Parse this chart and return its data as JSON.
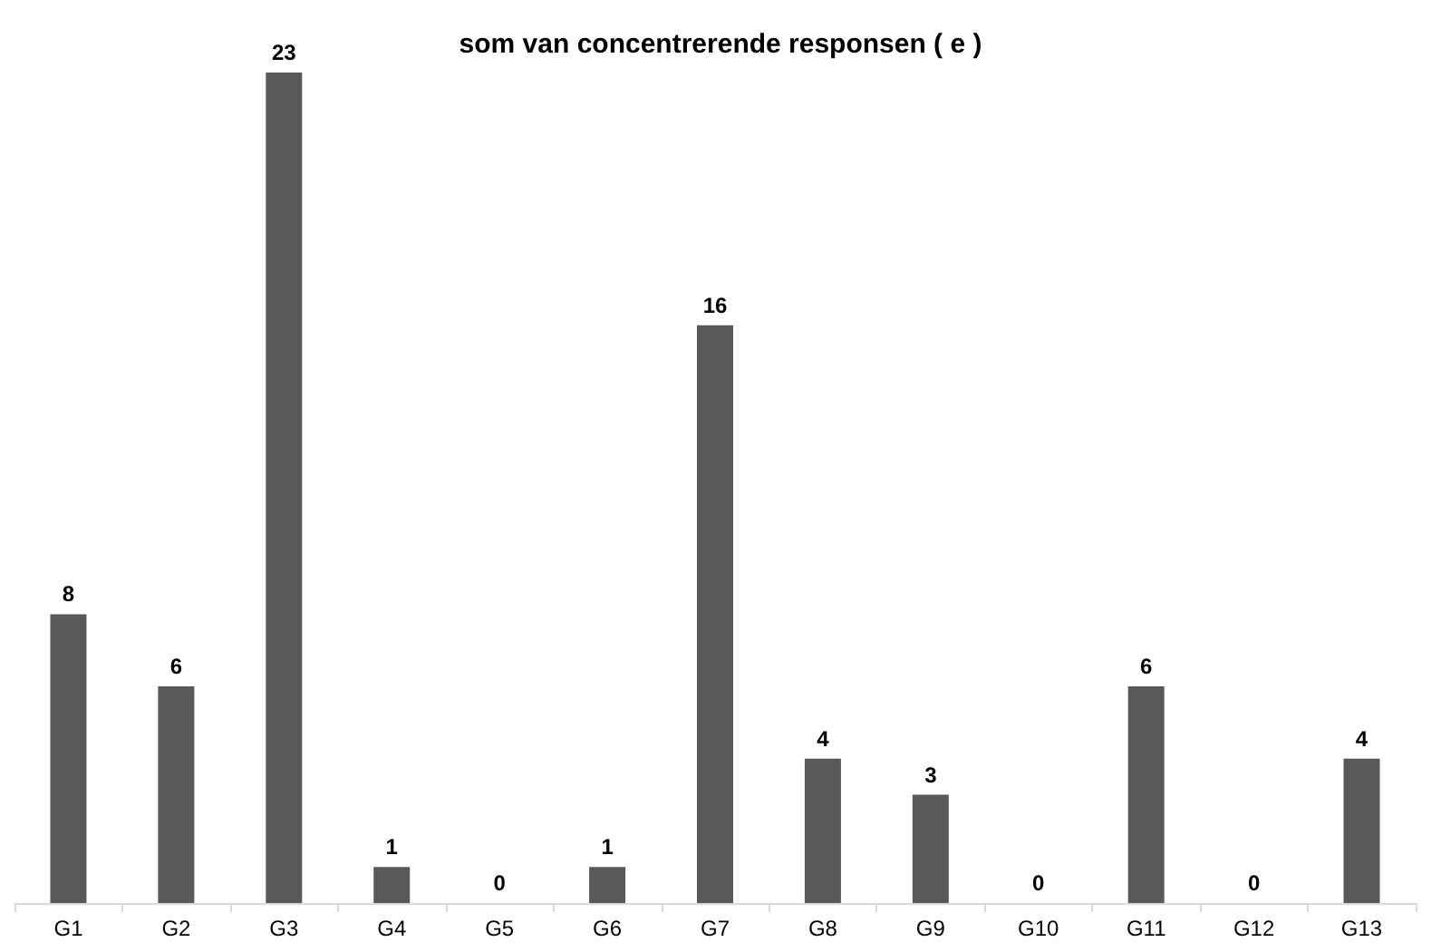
{
  "chart_data": {
    "type": "bar",
    "title": "som van concentrerende responsen ( e )",
    "categories": [
      "G1",
      "G2",
      "G3",
      "G4",
      "G5",
      "G6",
      "G7",
      "G8",
      "G9",
      "G10",
      "G11",
      "G12",
      "G13"
    ],
    "values": [
      8,
      6,
      23,
      1,
      0,
      1,
      16,
      4,
      3,
      0,
      6,
      0,
      4
    ],
    "color": "#595959",
    "data_labels": true
  }
}
